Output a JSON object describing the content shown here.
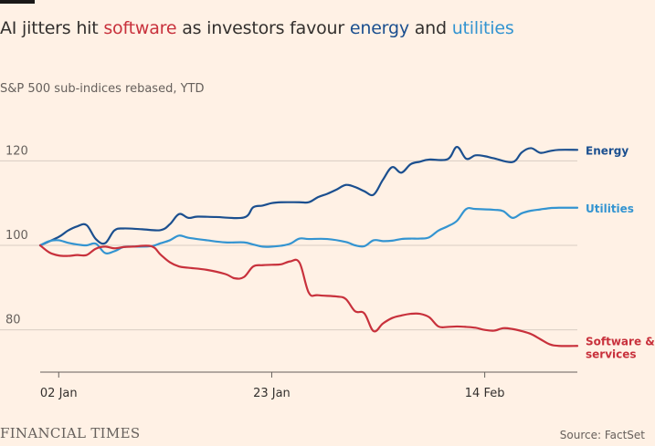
{
  "header": {
    "title_parts": [
      {
        "text": "AI jitters hit ",
        "color": "#33302e"
      },
      {
        "text": "software",
        "color": "#c8313c"
      },
      {
        "text": " as investors favour ",
        "color": "#33302e"
      },
      {
        "text": "energy",
        "color": "#1b4f8f"
      },
      {
        "text": " and ",
        "color": "#33302e"
      },
      {
        "text": "utilities",
        "color": "#3394d1"
      }
    ],
    "subtitle": "S&P 500 sub-indices rebased, YTD"
  },
  "footer": {
    "brand": "FINANCIAL TIMES",
    "source": "Source: FactSet"
  },
  "chart_data": {
    "type": "line",
    "title": "AI jitters hit software as investors favour energy and utilities",
    "subtitle": "S&P 500 sub-indices rebased, YTD",
    "xlabel": "",
    "ylabel": "",
    "ylim": [
      70,
      130
    ],
    "yticks": [
      80,
      100,
      120
    ],
    "xlim": [
      0,
      58
    ],
    "xticks": [
      {
        "value": 2,
        "label": "02 Jan"
      },
      {
        "value": 25,
        "label": "23 Jan"
      },
      {
        "value": 48,
        "label": "14 Feb"
      }
    ],
    "grid": true,
    "series": [
      {
        "name": "Energy",
        "label_lines": [
          "Energy"
        ],
        "color": "#1b4f8f",
        "points": [
          [
            0,
            100
          ],
          [
            2,
            102
          ],
          [
            3,
            103.5
          ],
          [
            4,
            104.5
          ],
          [
            5,
            104.8
          ],
          [
            6,
            101.5
          ],
          [
            7,
            100.5
          ],
          [
            8,
            103.5
          ],
          [
            9,
            104
          ],
          [
            11,
            103.8
          ],
          [
            13,
            103.6
          ],
          [
            14,
            105
          ],
          [
            15,
            107.4
          ],
          [
            16,
            106.5
          ],
          [
            17,
            106.8
          ],
          [
            19,
            106.7
          ],
          [
            22,
            106.6
          ],
          [
            23,
            109
          ],
          [
            24,
            109.4
          ],
          [
            25,
            110
          ],
          [
            26,
            110.2
          ],
          [
            28,
            110.2
          ],
          [
            29,
            110.2
          ],
          [
            30,
            111.4
          ],
          [
            31,
            112.2
          ],
          [
            32,
            113.2
          ],
          [
            33,
            114.3
          ],
          [
            34,
            113.8
          ],
          [
            35,
            112.8
          ],
          [
            36,
            112
          ],
          [
            37,
            115.5
          ],
          [
            38,
            118.5
          ],
          [
            39,
            117.2
          ],
          [
            40,
            119.2
          ],
          [
            41,
            119.8
          ],
          [
            42,
            120.3
          ],
          [
            44,
            120.4
          ],
          [
            45,
            123.3
          ],
          [
            46,
            120.5
          ],
          [
            47,
            121.3
          ],
          [
            48,
            121.1
          ],
          [
            49,
            120.6
          ],
          [
            51,
            119.7
          ],
          [
            52,
            122
          ],
          [
            53,
            123
          ],
          [
            54,
            121.9
          ],
          [
            55,
            122.3
          ],
          [
            56,
            122.6
          ],
          [
            58,
            122.6
          ]
        ]
      },
      {
        "name": "Utilities",
        "label_lines": [
          "Utilities"
        ],
        "color": "#3394d1",
        "points": [
          [
            0,
            100
          ],
          [
            1,
            101
          ],
          [
            2,
            101.2
          ],
          [
            3,
            100.6
          ],
          [
            4,
            100.2
          ],
          [
            5,
            100
          ],
          [
            6,
            100.4
          ],
          [
            7,
            98.2
          ],
          [
            8,
            98.6
          ],
          [
            9,
            99.6
          ],
          [
            10,
            99.7
          ],
          [
            12,
            99.8
          ],
          [
            13,
            100.5
          ],
          [
            14,
            101.2
          ],
          [
            15,
            102.3
          ],
          [
            16,
            101.8
          ],
          [
            18,
            101.2
          ],
          [
            20,
            100.7
          ],
          [
            22,
            100.7
          ],
          [
            23,
            100.2
          ],
          [
            24,
            99.7
          ],
          [
            25,
            99.7
          ],
          [
            26,
            99.9
          ],
          [
            27,
            100.4
          ],
          [
            28,
            101.6
          ],
          [
            29,
            101.5
          ],
          [
            31,
            101.5
          ],
          [
            33,
            100.8
          ],
          [
            34,
            100
          ],
          [
            35,
            99.8
          ],
          [
            36,
            101.2
          ],
          [
            37,
            101
          ],
          [
            38,
            101.1
          ],
          [
            39,
            101.5
          ],
          [
            40,
            101.6
          ],
          [
            41,
            101.6
          ],
          [
            42,
            101.9
          ],
          [
            43,
            103.5
          ],
          [
            44,
            104.5
          ],
          [
            45,
            105.8
          ],
          [
            46,
            108.6
          ],
          [
            47,
            108.6
          ],
          [
            49,
            108.4
          ],
          [
            50,
            108.1
          ],
          [
            51,
            106.5
          ],
          [
            52,
            107.6
          ],
          [
            53,
            108.2
          ],
          [
            54,
            108.5
          ],
          [
            55,
            108.8
          ],
          [
            56,
            108.9
          ],
          [
            58,
            108.9
          ]
        ]
      },
      {
        "name": "Software & services",
        "label_lines": [
          "Software &",
          "services"
        ],
        "color": "#c8313c",
        "points": [
          [
            0,
            100
          ],
          [
            1,
            98.3
          ],
          [
            2,
            97.6
          ],
          [
            3,
            97.5
          ],
          [
            4,
            97.7
          ],
          [
            5,
            97.7
          ],
          [
            6,
            99.2
          ],
          [
            7,
            99.7
          ],
          [
            8,
            99.3
          ],
          [
            9,
            99.6
          ],
          [
            10,
            99.7
          ],
          [
            12,
            99.8
          ],
          [
            13,
            97.8
          ],
          [
            14,
            96
          ],
          [
            15,
            95
          ],
          [
            16,
            94.7
          ],
          [
            18,
            94.2
          ],
          [
            20,
            93.2
          ],
          [
            21,
            92.2
          ],
          [
            22,
            92.5
          ],
          [
            23,
            95
          ],
          [
            24,
            95.3
          ],
          [
            25,
            95.4
          ],
          [
            26,
            95.5
          ],
          [
            27,
            96.2
          ],
          [
            28,
            95.9
          ],
          [
            29,
            88.8
          ],
          [
            30,
            88.2
          ],
          [
            32,
            87.9
          ],
          [
            33,
            87.3
          ],
          [
            34,
            84.4
          ],
          [
            35,
            83.9
          ],
          [
            36,
            79.7
          ],
          [
            37,
            81.5
          ],
          [
            38,
            82.8
          ],
          [
            39,
            83.4
          ],
          [
            40,
            83.8
          ],
          [
            41,
            83.8
          ],
          [
            42,
            83
          ],
          [
            43,
            80.8
          ],
          [
            44,
            80.7
          ],
          [
            45,
            80.8
          ],
          [
            46,
            80.7
          ],
          [
            47,
            80.5
          ],
          [
            48,
            80
          ],
          [
            49,
            79.8
          ],
          [
            50,
            80.4
          ],
          [
            51,
            80.2
          ],
          [
            52,
            79.7
          ],
          [
            53,
            79
          ],
          [
            54,
            77.8
          ],
          [
            55,
            76.6
          ],
          [
            56,
            76.2
          ],
          [
            58,
            76.2
          ]
        ]
      }
    ]
  }
}
